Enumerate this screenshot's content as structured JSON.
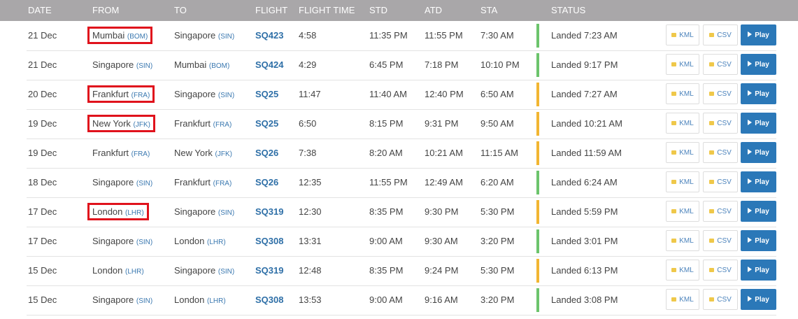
{
  "header": {
    "columns": [
      "DATE",
      "FROM",
      "TO",
      "FLIGHT",
      "FLIGHT TIME",
      "STD",
      "ATD",
      "STA",
      "STATUS"
    ]
  },
  "buttons": [
    "KML",
    "CSV",
    "Play"
  ],
  "rows": [
    {
      "date": "21 Dec",
      "from": {
        "city": "Mumbai",
        "code": "(BOM)"
      },
      "to": {
        "city": "Singapore",
        "code": "(SIN)"
      },
      "flight": "SQ423",
      "flight_time": "4:58",
      "std": "11:35 PM",
      "atd": "11:55 PM",
      "sta": "7:30 AM",
      "status": "Landed 7:23 AM",
      "status_color": "#6cc46c",
      "highlight": true
    },
    {
      "date": "21 Dec",
      "from": {
        "city": "Singapore",
        "code": "(SIN)"
      },
      "to": {
        "city": "Mumbai",
        "code": "(BOM)"
      },
      "flight": "SQ424",
      "flight_time": "4:29",
      "std": "6:45 PM",
      "atd": "7:18 PM",
      "sta": "10:10 PM",
      "status": "Landed 9:17 PM",
      "status_color": "#6cc46c",
      "highlight": false
    },
    {
      "date": "20 Dec",
      "from": {
        "city": "Frankfurt",
        "code": "(FRA)"
      },
      "to": {
        "city": "Singapore",
        "code": "(SIN)"
      },
      "flight": "SQ25",
      "flight_time": "11:47",
      "std": "11:40 AM",
      "atd": "12:40 PM",
      "sta": "6:50 AM",
      "status": "Landed 7:27 AM",
      "status_color": "#f2b632",
      "highlight": true
    },
    {
      "date": "19 Dec",
      "from": {
        "city": "New York",
        "code": "(JFK)"
      },
      "to": {
        "city": "Frankfurt",
        "code": "(FRA)"
      },
      "flight": "SQ25",
      "flight_time": "6:50",
      "std": "8:15 PM",
      "atd": "9:31 PM",
      "sta": "9:50 AM",
      "status": "Landed 10:21 AM",
      "status_color": "#f2b632",
      "highlight": true
    },
    {
      "date": "19 Dec",
      "from": {
        "city": "Frankfurt",
        "code": "(FRA)"
      },
      "to": {
        "city": "New York",
        "code": "(JFK)"
      },
      "flight": "SQ26",
      "flight_time": "7:38",
      "std": "8:20 AM",
      "atd": "10:21 AM",
      "sta": "11:15 AM",
      "status": "Landed 11:59 AM",
      "status_color": "#f2b632",
      "highlight": false
    },
    {
      "date": "18 Dec",
      "from": {
        "city": "Singapore",
        "code": "(SIN)"
      },
      "to": {
        "city": "Frankfurt",
        "code": "(FRA)"
      },
      "flight": "SQ26",
      "flight_time": "12:35",
      "std": "11:55 PM",
      "atd": "12:49 AM",
      "sta": "6:20 AM",
      "status": "Landed 6:24 AM",
      "status_color": "#6cc46c",
      "highlight": false
    },
    {
      "date": "17 Dec",
      "from": {
        "city": "London",
        "code": "(LHR)"
      },
      "to": {
        "city": "Singapore",
        "code": "(SIN)"
      },
      "flight": "SQ319",
      "flight_time": "12:30",
      "std": "8:35 PM",
      "atd": "9:30 PM",
      "sta": "5:30 PM",
      "status": "Landed 5:59 PM",
      "status_color": "#f2b632",
      "highlight": true
    },
    {
      "date": "17 Dec",
      "from": {
        "city": "Singapore",
        "code": "(SIN)"
      },
      "to": {
        "city": "London",
        "code": "(LHR)"
      },
      "flight": "SQ308",
      "flight_time": "13:31",
      "std": "9:00 AM",
      "atd": "9:30 AM",
      "sta": "3:20 PM",
      "status": "Landed 3:01 PM",
      "status_color": "#6cc46c",
      "highlight": false
    },
    {
      "date": "15 Dec",
      "from": {
        "city": "London",
        "code": "(LHR)"
      },
      "to": {
        "city": "Singapore",
        "code": "(SIN)"
      },
      "flight": "SQ319",
      "flight_time": "12:48",
      "std": "8:35 PM",
      "atd": "9:24 PM",
      "sta": "5:30 PM",
      "status": "Landed 6:13 PM",
      "status_color": "#f2b632",
      "highlight": false
    },
    {
      "date": "15 Dec",
      "from": {
        "city": "Singapore",
        "code": "(SIN)"
      },
      "to": {
        "city": "London",
        "code": "(LHR)"
      },
      "flight": "SQ308",
      "flight_time": "13:53",
      "std": "9:00 AM",
      "atd": "9:16 AM",
      "sta": "3:20 PM",
      "status": "Landed 3:08 PM",
      "status_color": "#6cc46c",
      "highlight": false
    }
  ]
}
